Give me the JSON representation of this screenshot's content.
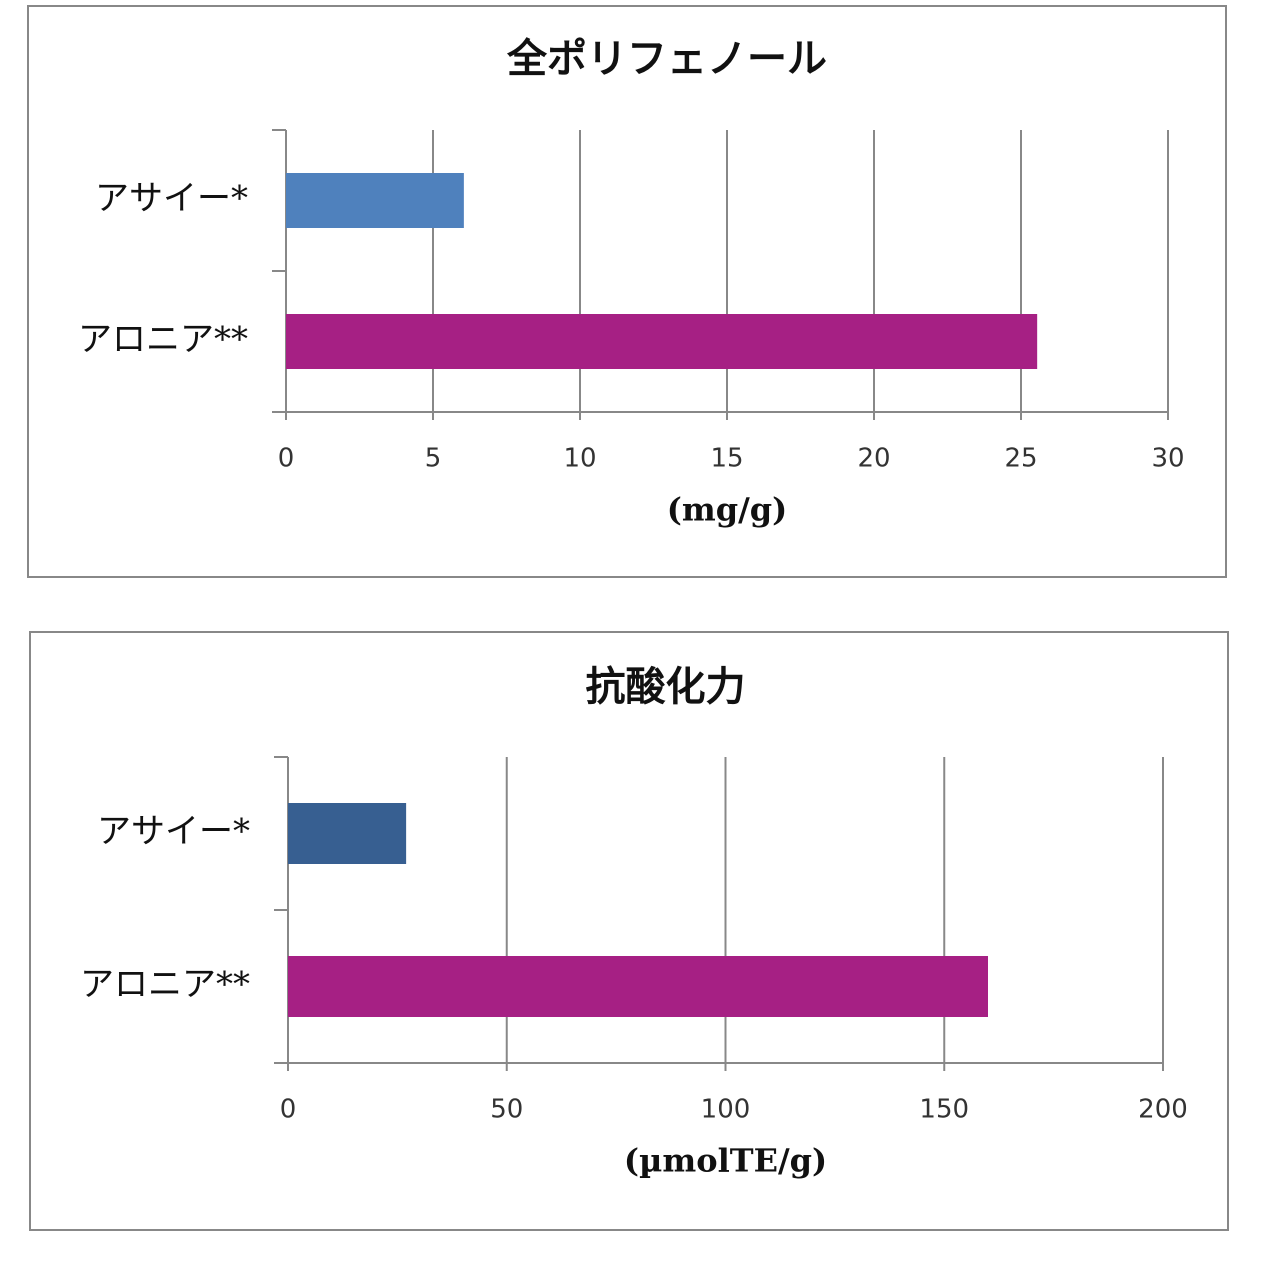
{
  "chart_data": [
    {
      "type": "bar",
      "orientation": "horizontal",
      "title": "全ポリフェノール",
      "x_label": "(mg/g)",
      "categories": [
        "アサイー*",
        "アロニア**"
      ],
      "values": [
        6.05,
        25.55
      ],
      "colors": [
        "#4f81bd",
        "#a62084"
      ],
      "xlim": [
        0,
        30
      ],
      "xticks": [
        0,
        5,
        10,
        15,
        20,
        25,
        30
      ],
      "grid": true
    },
    {
      "type": "bar",
      "orientation": "horizontal",
      "title": "抗酸化力",
      "x_label": "(µmolTE/g)",
      "categories": [
        "アサイー*",
        "アロニア**"
      ],
      "values": [
        27,
        160
      ],
      "colors": [
        "#375f91",
        "#a62084"
      ],
      "xlim": [
        0,
        200
      ],
      "xticks": [
        0,
        50,
        100,
        150,
        200
      ],
      "grid": true
    }
  ]
}
